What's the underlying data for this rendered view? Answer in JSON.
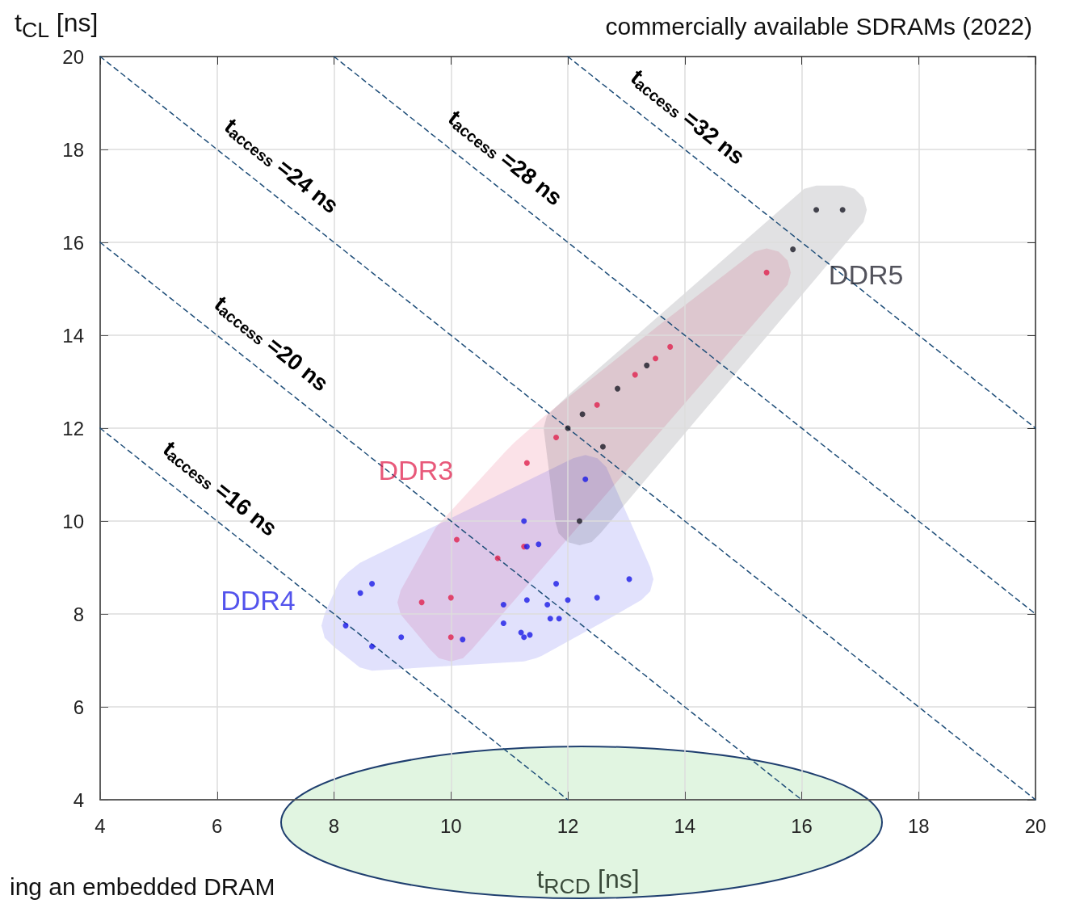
{
  "chart_data": {
    "type": "scatter",
    "title": "commercially available SDRAMs (2022)",
    "xlabel": "t$_{RCD}$ [ns]",
    "ylabel": "t$_{CL}$ [ns]",
    "annotations": [
      "ing an embedded DRAM"
    ],
    "xlim": [
      4,
      20
    ],
    "ylim": [
      4,
      20
    ],
    "xticks": [
      4,
      6,
      8,
      10,
      12,
      14,
      16,
      18,
      20
    ],
    "yticks": [
      4,
      6,
      8,
      10,
      12,
      14,
      16,
      18,
      20
    ],
    "grid": true,
    "legend": false,
    "marker": "circle",
    "series": [
      {
        "name": "DDR3",
        "color": "#e0224e",
        "x": [
          9.5,
          10.0,
          10.0,
          10.1,
          10.8,
          11.25,
          11.3,
          11.8,
          12.5,
          13.15,
          13.5,
          13.75,
          15.4
        ],
        "values": [
          8.25,
          8.35,
          7.5,
          9.6,
          9.2,
          9.45,
          11.25,
          11.8,
          12.5,
          13.15,
          13.5,
          13.75,
          15.35
        ]
      },
      {
        "name": "DDR4",
        "color": "#1a1ae6",
        "x": [
          8.2,
          8.45,
          8.65,
          8.65,
          9.15,
          10.2,
          10.9,
          10.9,
          11.2,
          11.25,
          11.35,
          11.3,
          11.65,
          11.7,
          11.8,
          11.85,
          12.0,
          12.5,
          13.05,
          11.25,
          11.5,
          11.3,
          12.3
        ],
        "values": [
          7.75,
          8.45,
          8.65,
          7.3,
          7.5,
          7.45,
          8.2,
          7.8,
          7.6,
          7.5,
          7.55,
          8.3,
          8.2,
          7.9,
          8.65,
          7.9,
          8.3,
          8.35,
          8.75,
          10.0,
          9.5,
          9.45,
          10.9
        ]
      },
      {
        "name": "DDR5",
        "color": "#1a1a26",
        "x": [
          12.0,
          12.25,
          12.6,
          12.85,
          13.35,
          12.2,
          15.85,
          16.25,
          16.7
        ],
        "values": [
          12.0,
          12.3,
          11.6,
          12.85,
          13.35,
          10.0,
          15.85,
          16.7,
          16.7
        ]
      },
      {
        "name": "t$_{access}$ =16 ns",
        "type": "line",
        "color": "#1f4e79",
        "line_style": "dashed",
        "marker": "none",
        "x": [
          4,
          12
        ],
        "values": [
          12,
          4
        ]
      },
      {
        "name": "t$_{access}$ =20 ns",
        "type": "line",
        "color": "#1f4e79",
        "line_style": "dashed",
        "marker": "none",
        "x": [
          4,
          16
        ],
        "values": [
          16,
          4
        ]
      },
      {
        "name": "t$_{access}$ =24 ns",
        "type": "line",
        "color": "#1f4e79",
        "line_style": "dashed",
        "marker": "none",
        "x": [
          4,
          20
        ],
        "values": [
          20,
          4
        ]
      },
      {
        "name": "t$_{access}$ =28 ns",
        "type": "line",
        "color": "#1f4e79",
        "line_style": "dashed",
        "marker": "none",
        "x": [
          8,
          20
        ],
        "values": [
          20,
          8
        ]
      },
      {
        "name": "t$_{access}$ =32 ns",
        "type": "line",
        "color": "#1f4e79",
        "line_style": "dashed",
        "marker": "none",
        "x": [
          12,
          20
        ],
        "values": [
          20,
          12
        ]
      }
    ]
  }
}
